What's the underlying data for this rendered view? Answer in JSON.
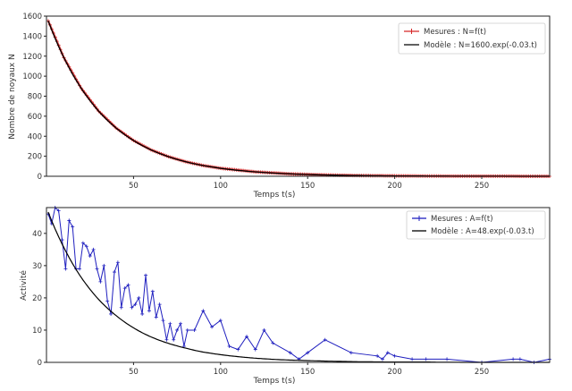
{
  "chart_data": [
    {
      "type": "line",
      "title": "",
      "xlabel": "Temps t(s)",
      "ylabel": "Nombre de noyaux N",
      "xlim": [
        0,
        289
      ],
      "ylim": [
        0,
        1600
      ],
      "xticks": [
        50,
        100,
        150,
        200,
        250
      ],
      "yticks": [
        0,
        200,
        400,
        600,
        800,
        1000,
        1200,
        1400,
        1600
      ],
      "grid": false,
      "legend_position": "upper right",
      "series": [
        {
          "name": "Mesures : N=f(t)",
          "color": "#d62728",
          "marker": "+",
          "x": [
            1,
            10,
            20,
            30,
            40,
            50,
            60,
            70,
            80,
            90,
            100,
            120,
            140,
            160,
            180,
            200,
            220,
            240,
            260,
            280,
            289
          ],
          "values": [
            1553,
            1185,
            878,
            650,
            482,
            357,
            264,
            196,
            145,
            107,
            80,
            44,
            24,
            13,
            7,
            4,
            2,
            1,
            1,
            0,
            0
          ]
        },
        {
          "name": "Modèle : N=1600.exp(-0.03.t)",
          "color": "#000000",
          "marker": "",
          "x": [
            1,
            10,
            20,
            30,
            40,
            50,
            60,
            70,
            80,
            90,
            100,
            120,
            140,
            160,
            180,
            200,
            220,
            240,
            260,
            280,
            289
          ],
          "values": [
            1553,
            1185,
            878,
            650,
            482,
            357,
            264,
            196,
            145,
            107,
            80,
            44,
            24,
            13,
            7,
            4,
            2,
            1,
            1,
            0,
            0
          ]
        }
      ]
    },
    {
      "type": "line",
      "title": "",
      "xlabel": "Temps t(s)",
      "ylabel": "Activité",
      "xlim": [
        0,
        289
      ],
      "ylim": [
        0,
        48
      ],
      "xticks": [
        50,
        100,
        150,
        200,
        250
      ],
      "yticks": [
        0,
        10,
        20,
        30,
        40
      ],
      "grid": false,
      "legend_position": "upper right",
      "series": [
        {
          "name": "Mesures : A=f(t)",
          "color": "#1f1fbf",
          "marker": "+",
          "x": [
            1,
            3,
            5,
            7,
            9,
            11,
            13,
            15,
            17,
            19,
            21,
            23,
            25,
            27,
            29,
            31,
            33,
            35,
            37,
            39,
            41,
            43,
            45,
            47,
            49,
            51,
            53,
            55,
            57,
            59,
            61,
            63,
            65,
            67,
            69,
            71,
            73,
            75,
            77,
            79,
            81,
            85,
            90,
            95,
            100,
            105,
            110,
            115,
            120,
            125,
            130,
            140,
            145,
            150,
            160,
            175,
            190,
            193,
            196,
            200,
            210,
            218,
            230,
            250,
            268,
            272,
            280,
            289
          ],
          "values": [
            46,
            43,
            48,
            47,
            38,
            29,
            44,
            42,
            29,
            29,
            37,
            36,
            33,
            35,
            29,
            25,
            30,
            19,
            15,
            28,
            31,
            17,
            23,
            24,
            17,
            18,
            20,
            15,
            27,
            16,
            22,
            14,
            18,
            13,
            7,
            12,
            7,
            10,
            12,
            5,
            10,
            10,
            16,
            11,
            13,
            5,
            4,
            8,
            4,
            10,
            6,
            3,
            1,
            3,
            7,
            3,
            2,
            1,
            3,
            2,
            1,
            1,
            1,
            0,
            1,
            1,
            0,
            1
          ]
        },
        {
          "name": "Modèle : A=48.exp(-0.03.t)",
          "color": "#000000",
          "marker": "",
          "x": [
            1,
            10,
            20,
            30,
            40,
            50,
            60,
            70,
            80,
            90,
            100,
            120,
            140,
            160,
            180,
            200,
            220,
            240,
            260,
            280,
            289
          ],
          "values": [
            46.6,
            35.6,
            26.3,
            19.5,
            14.5,
            10.7,
            7.9,
            5.9,
            4.4,
            3.2,
            2.4,
            1.3,
            0.7,
            0.4,
            0.2,
            0.1,
            0.1,
            0.0,
            0.0,
            0.0,
            0.0
          ]
        }
      ]
    }
  ],
  "figure": {
    "top": {
      "legend": [
        "Mesures : N=f(t)",
        "Modèle : N=1600.exp(-0.03.t)"
      ],
      "xlabel": "Temps t(s)",
      "ylabel": "Nombre de noyaux N"
    },
    "bottom": {
      "legend": [
        "Mesures : A=f(t)",
        "Modèle : A=48.exp(-0.03.t)"
      ],
      "xlabel": "Temps t(s)",
      "ylabel": "Activité"
    }
  }
}
